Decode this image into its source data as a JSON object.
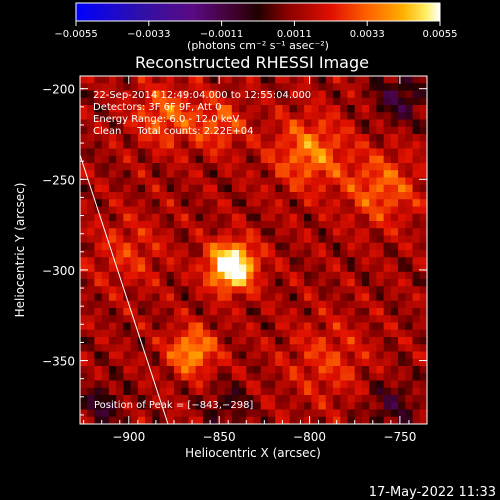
{
  "chart_data": {
    "type": "heatmap",
    "title": "Reconstructed RHESSI Image",
    "xlabel": "Heliocentric X (arcsec)",
    "ylabel": "Heliocentric Y (arcsec)",
    "xlim": [
      -927,
      -735
    ],
    "ylim": [
      -385,
      -193
    ],
    "xticks": [
      -900,
      -850,
      -800,
      -750
    ],
    "xtick_labels": [
      "−900",
      "−850",
      "−800",
      "−750"
    ],
    "yticks": [
      -200,
      -250,
      -300,
      -350
    ],
    "ytick_labels": [
      "−200",
      "−250",
      "−300",
      "−350"
    ],
    "colorbar": {
      "min": -0.0055,
      "max": 0.0055,
      "ticks": [
        -0.0055,
        -0.0033,
        -0.0011,
        0.0011,
        0.0033,
        0.0055
      ],
      "tick_labels": [
        "−0.0055",
        "−0.0033",
        "−0.0011",
        "0.0011",
        "0.0033",
        "0.0055"
      ],
      "colormap": "rhessi-blue-black-red-yellow-white"
    },
    "units_label": "(photons cm⁻² s⁻¹ asec⁻²)",
    "annotations": [
      "22-Sep-2014 12:49:04.000 to 12:55:04.000",
      "Detectors: 3F 6F 9F, Att 0",
      "Energy Range: 6.0 - 12.0 keV",
      "Clean     Total counts: 2.22E+04"
    ],
    "peak_label": "Position of Peak = [−843,−298]",
    "peak_position": [
      -843,
      -298
    ],
    "grid": false,
    "sources": [
      {
        "x": -843,
        "y": -298,
        "sigma": 9,
        "amp": 0.0055
      },
      {
        "x": -865,
        "y": -345,
        "sigma": 9,
        "amp": 0.003
      },
      {
        "x": -800,
        "y": -235,
        "sigma": 14,
        "amp": 0.0024
      },
      {
        "x": -880,
        "y": -215,
        "sigma": 12,
        "amp": 0.002
      },
      {
        "x": -760,
        "y": -255,
        "sigma": 14,
        "amp": 0.002
      },
      {
        "x": -850,
        "y": -220,
        "sigma": 10,
        "amp": 0.0018
      },
      {
        "x": -900,
        "y": -290,
        "sigma": 14,
        "amp": 0.0012
      },
      {
        "x": -790,
        "y": -350,
        "sigma": 16,
        "amp": 0.0013
      }
    ],
    "negative_regions": [
      {
        "x": -750,
        "y": -205,
        "sigma": 10,
        "amp": -0.0018
      },
      {
        "x": -915,
        "y": -375,
        "sigma": 8,
        "amp": -0.0016
      },
      {
        "x": -755,
        "y": -375,
        "sigma": 10,
        "amp": -0.0014
      },
      {
        "x": -845,
        "y": -375,
        "sigma": 8,
        "amp": -0.0012
      }
    ]
  },
  "footer": {
    "timestamp": "17-May-2022 11:33"
  }
}
